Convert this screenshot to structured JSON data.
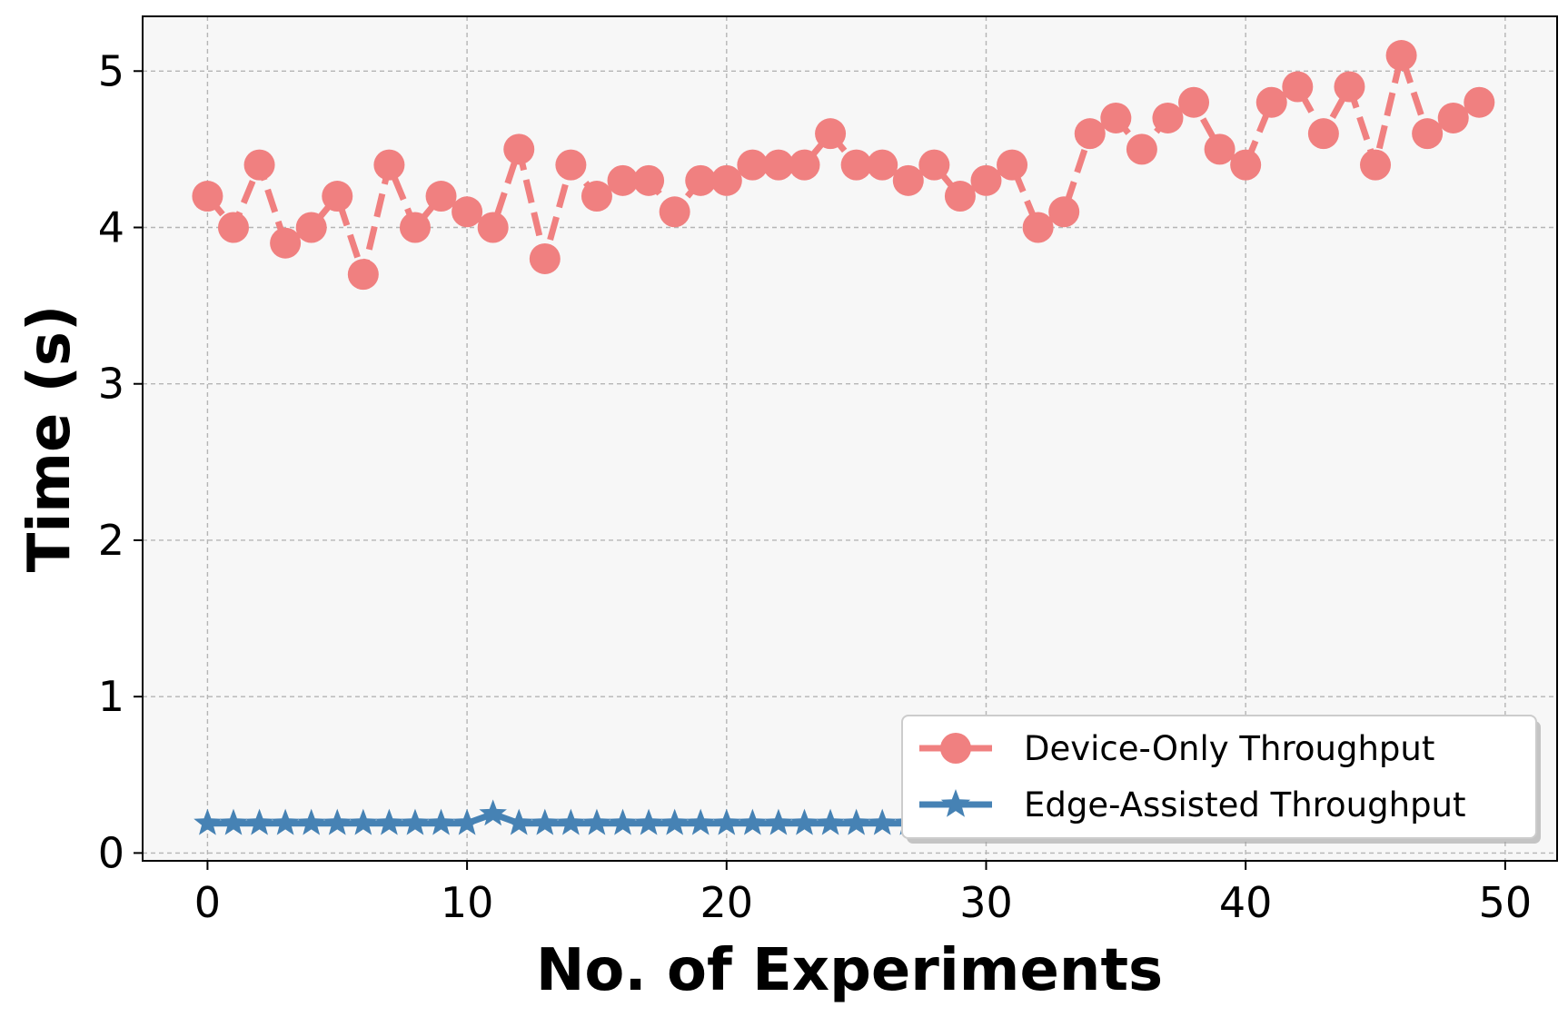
{
  "chart_data": {
    "type": "line",
    "xlabel": "No. of Experiments",
    "ylabel": "Time (s)",
    "xlim": [
      -2.5,
      52
    ],
    "ylim": [
      -0.05,
      5.35
    ],
    "xticks": [
      0,
      10,
      20,
      30,
      40,
      50
    ],
    "yticks": [
      0,
      1,
      2,
      3,
      4,
      5
    ],
    "grid": true,
    "legend_position": "lower-right",
    "x": [
      0,
      1,
      2,
      3,
      4,
      5,
      6,
      7,
      8,
      9,
      10,
      11,
      12,
      13,
      14,
      15,
      16,
      17,
      18,
      19,
      20,
      21,
      22,
      23,
      24,
      25,
      26,
      27,
      28,
      29,
      30,
      31,
      32,
      33,
      34,
      35,
      36,
      37,
      38,
      39,
      40,
      41,
      42,
      43,
      44,
      45,
      46,
      47,
      48,
      49
    ],
    "series": [
      {
        "name": "Device-Only Throughput",
        "color": "#f08080",
        "marker": "circle",
        "line_style": "dashed",
        "values": [
          4.2,
          4.0,
          4.4,
          3.9,
          4.0,
          4.2,
          3.7,
          4.4,
          4.0,
          4.2,
          4.1,
          4.0,
          4.5,
          3.8,
          4.4,
          4.2,
          4.3,
          4.3,
          4.1,
          4.3,
          4.3,
          4.4,
          4.4,
          4.4,
          4.6,
          4.4,
          4.4,
          4.3,
          4.4,
          4.2,
          4.3,
          4.4,
          4.0,
          4.1,
          4.6,
          4.7,
          4.5,
          4.7,
          4.8,
          4.5,
          4.4,
          4.8,
          4.9,
          4.6,
          4.9,
          4.4,
          5.1,
          4.6,
          4.7,
          4.8
        ]
      },
      {
        "name": "Edge-Assisted Throughput",
        "color": "#4682b4",
        "marker": "star",
        "line_style": "solid",
        "values": [
          0.19,
          0.19,
          0.19,
          0.19,
          0.19,
          0.19,
          0.19,
          0.19,
          0.19,
          0.19,
          0.19,
          0.25,
          0.19,
          0.19,
          0.19,
          0.19,
          0.19,
          0.19,
          0.19,
          0.19,
          0.19,
          0.19,
          0.19,
          0.19,
          0.19,
          0.19,
          0.19,
          0.19,
          0.19,
          0.19,
          0.19,
          0.19,
          0.19,
          0.19,
          0.19,
          0.19,
          0.19,
          0.19,
          0.19,
          0.19,
          0.19,
          0.19,
          0.19,
          0.19,
          0.19,
          0.19,
          0.19,
          0.19,
          0.19,
          0.19
        ]
      }
    ]
  }
}
